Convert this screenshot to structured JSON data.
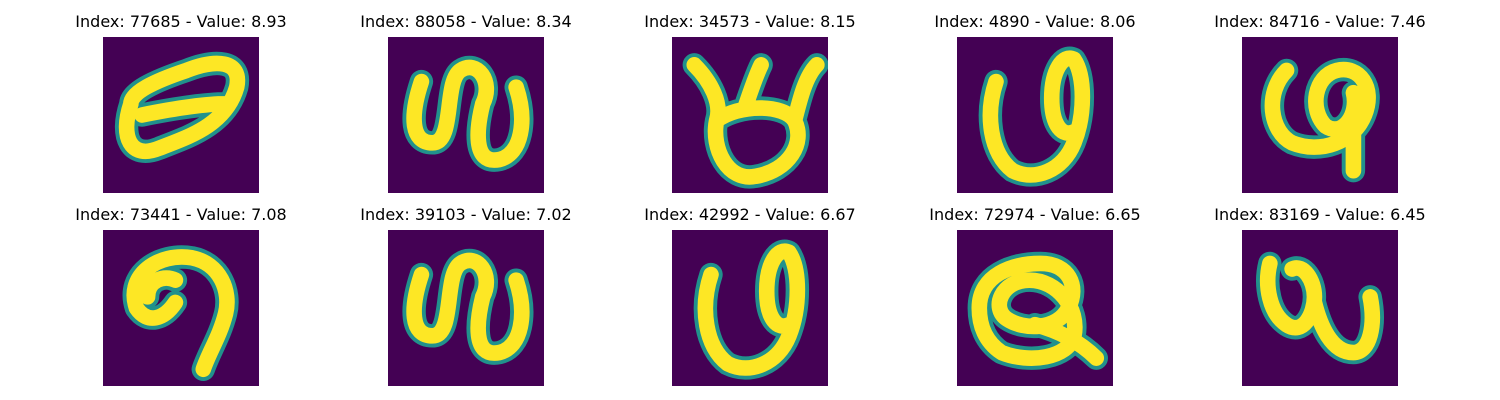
{
  "colors": {
    "background": "#440154",
    "mid": "#21918c",
    "stroke": "#fde725"
  },
  "panels": [
    {
      "title": "Index: 77685 - Value: 8.93",
      "shape": "ellipse-loop"
    },
    {
      "title": "Index: 88058 - Value: 8.34",
      "shape": "double-hump-n"
    },
    {
      "title": "Index: 34573 - Value: 8.15",
      "shape": "horned-loop"
    },
    {
      "title": "Index: 4890 - Value: 8.06",
      "shape": "u-with-loop"
    },
    {
      "title": "Index: 84716 - Value: 7.46",
      "shape": "hooked-loop"
    },
    {
      "title": "Index: 73441 - Value: 7.08",
      "shape": "blob-hook"
    },
    {
      "title": "Index: 39103 - Value: 7.02",
      "shape": "double-hump-n"
    },
    {
      "title": "Index: 42992 - Value: 6.67",
      "shape": "u-with-loop"
    },
    {
      "title": "Index: 72974 - Value: 6.65",
      "shape": "crossed-loop"
    },
    {
      "title": "Index: 83169 - Value: 6.45",
      "shape": "n-wave"
    }
  ]
}
